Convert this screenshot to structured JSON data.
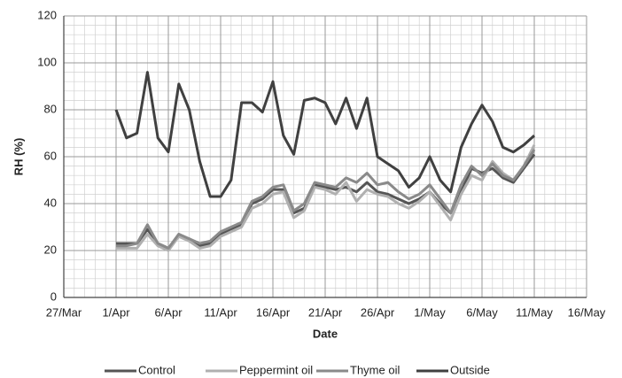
{
  "chart_data": {
    "type": "line",
    "x_label": "Date",
    "y_label": "RH (%)",
    "x": [
      5,
      6,
      7,
      8,
      9,
      10,
      11,
      12,
      13,
      14,
      15,
      16,
      17,
      18,
      19,
      20,
      21,
      22,
      23,
      24,
      25,
      26,
      27,
      28,
      29,
      30,
      31,
      32,
      33,
      34,
      35,
      36,
      37,
      38,
      39,
      40,
      41,
      42,
      43,
      44,
      45
    ],
    "series": [
      {
        "name": "Control",
        "color": "#555555",
        "values": [
          23,
          23,
          23,
          29,
          23,
          21,
          26,
          25,
          22,
          23,
          27,
          29,
          31,
          40,
          42,
          46,
          46,
          36,
          38,
          48,
          47,
          46,
          47,
          45,
          49,
          45,
          44,
          42,
          40,
          42,
          45,
          40,
          36,
          45,
          55,
          53,
          55,
          51,
          49,
          55,
          61
        ]
      },
      {
        "name": "Peppermint oil",
        "color": "#b0b0b0",
        "values": [
          21,
          21,
          21,
          27,
          22,
          20,
          26,
          24,
          21,
          22,
          26,
          28,
          30,
          38,
          40,
          44,
          45,
          34,
          37,
          47,
          46,
          44,
          49,
          41,
          46,
          44,
          43,
          40,
          38,
          41,
          45,
          39,
          33,
          44,
          52,
          50,
          58,
          53,
          50,
          56,
          65
        ]
      },
      {
        "name": "Thyme oil",
        "color": "#8a8a8a",
        "values": [
          22,
          22,
          23,
          31,
          23,
          21,
          27,
          25,
          23,
          24,
          28,
          30,
          32,
          41,
          43,
          47,
          48,
          37,
          40,
          49,
          48,
          47,
          51,
          49,
          53,
          48,
          49,
          45,
          42,
          44,
          48,
          42,
          36,
          48,
          56,
          52,
          57,
          52,
          50,
          56,
          63
        ]
      },
      {
        "name": "Outside",
        "color": "#404040",
        "values": [
          80,
          68,
          70,
          96,
          68,
          62,
          91,
          80,
          58,
          43,
          43,
          50,
          83,
          83,
          79,
          92,
          69,
          61,
          84,
          85,
          83,
          74,
          85,
          72,
          85,
          60,
          57,
          54,
          47,
          51,
          60,
          50,
          45,
          64,
          74,
          82,
          75,
          64,
          62,
          65,
          69
        ]
      }
    ],
    "xlim": [
      0,
      50
    ],
    "xticks": [
      {
        "value": 0,
        "label": "27/Mar"
      },
      {
        "value": 5,
        "label": "1/Apr"
      },
      {
        "value": 10,
        "label": "6/Apr"
      },
      {
        "value": 15,
        "label": "11/Apr"
      },
      {
        "value": 20,
        "label": "16/Apr"
      },
      {
        "value": 25,
        "label": "21/Apr"
      },
      {
        "value": 30,
        "label": "26/Apr"
      },
      {
        "value": 35,
        "label": "1/May"
      },
      {
        "value": 40,
        "label": "6/May"
      },
      {
        "value": 45,
        "label": "11/May"
      },
      {
        "value": 50,
        "label": "16/May"
      }
    ],
    "ylim": [
      0,
      120
    ],
    "yticks": [
      0,
      20,
      40,
      60,
      80,
      100,
      120
    ],
    "grid": true,
    "minor_grid": true,
    "legend": "bottom"
  }
}
